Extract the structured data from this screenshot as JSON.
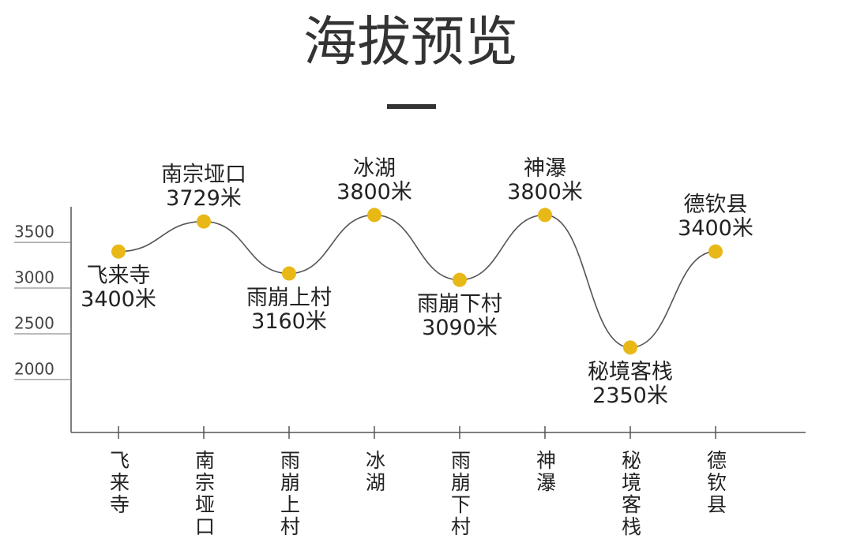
{
  "chart_data": {
    "type": "line",
    "title": "海拔预览",
    "categories": [
      "飞来寺",
      "南宗垭口",
      "雨崩上村",
      "冰湖",
      "雨崩下村",
      "神瀑",
      "秘境客栈",
      "德钦县"
    ],
    "values": [
      3400,
      3729,
      3160,
      3800,
      3090,
      3800,
      2350,
      3400
    ],
    "value_labels": [
      "3400米",
      "3729米",
      "3160米",
      "3800米",
      "3090米",
      "3800米",
      "2350米",
      "3400米"
    ],
    "color": "#e8b817",
    "line_color": "#555555",
    "ylim": [
      1420,
      3890
    ],
    "yticks": [
      2000,
      2500,
      3000,
      3500
    ]
  }
}
